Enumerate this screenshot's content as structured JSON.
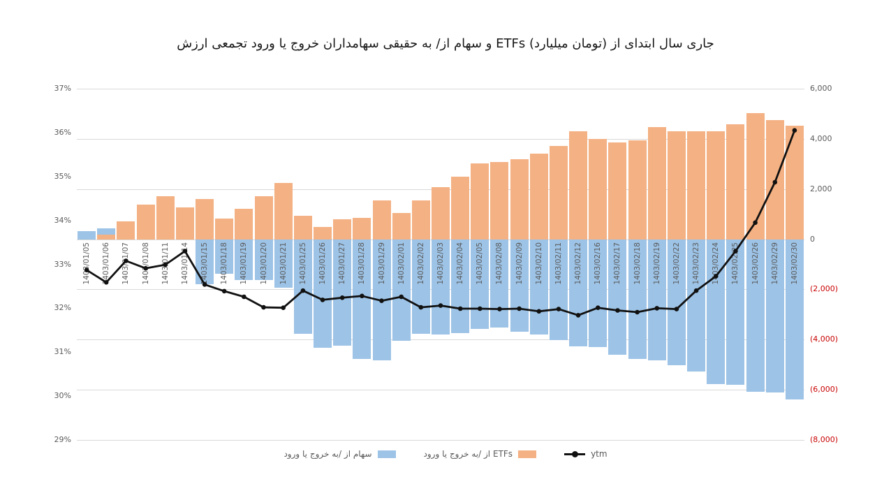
{
  "title": "ارزش تجمعی ورود یا خروج سهامداران حقیقی به /از سهام و ETFs (میلیارد تومان) از ابتدای سال جاری",
  "legend": {
    "stocks": "ورود یا خروج به/ از سهام",
    "etfs": "ورود یا خروج به/ از ETFs",
    "ytm": "ytm"
  },
  "colors": {
    "stocks_bar": "#9DC3E6",
    "etfs_bar": "#F4B183",
    "ytm_line": "#111111",
    "gridline": "#D9D9D9",
    "axis_text": "#595959",
    "negative_axis_text": "#C80000"
  },
  "chart_data": {
    "type": "combo: stacked bar (right axis) + line (left axis)",
    "grid": "horizontal gridlines on, legend bottom-center",
    "categories": [
      "1403/01/05",
      "1403/01/06",
      "1403/01/07",
      "1403/01/08",
      "1403/01/11",
      "1403/01/14",
      "1403/01/15",
      "1403/01/18",
      "1403/01/19",
      "1403/01/20",
      "1403/01/21",
      "1403/01/25",
      "1403/01/26",
      "1403/01/27",
      "1403/01/28",
      "1403/01/29",
      "1403/02/01",
      "1403/02/02",
      "1403/02/03",
      "1403/02/04",
      "1403/02/05",
      "1403/02/08",
      "1403/02/09",
      "1403/02/10",
      "1403/02/11",
      "1403/02/12",
      "1403/02/16",
      "1403/02/17",
      "1403/02/18",
      "1403/02/19",
      "1403/02/22",
      "1403/02/23",
      "1403/02/24",
      "1403/02/25",
      "1403/02/26",
      "1403/02/29",
      "1403/02/30"
    ],
    "series": [
      {
        "name": "ورود یا خروج به/ از سهام",
        "type": "bar",
        "axis": "right",
        "values": [
          330,
          240,
          0,
          0,
          0,
          0,
          -1800,
          -1370,
          -1620,
          -1620,
          -1920,
          -3760,
          -4320,
          -4240,
          -4780,
          -4830,
          -4060,
          -3760,
          -3800,
          -3730,
          -3580,
          -3530,
          -3690,
          -3800,
          -4010,
          -4260,
          -4310,
          -4610,
          -4770,
          -4830,
          -5010,
          -5260,
          -5770,
          -5800,
          -6080,
          -6120,
          -6390
        ]
      },
      {
        "name": "ورود یا خروج به/ از ETFs",
        "type": "bar",
        "axis": "right",
        "values": [
          0,
          190,
          705,
          1370,
          1715,
          1255,
          1600,
          835,
          1215,
          1700,
          2235,
          935,
          500,
          805,
          840,
          1540,
          1055,
          1540,
          2085,
          2495,
          3015,
          3090,
          3180,
          3400,
          3720,
          4310,
          4000,
          3850,
          3950,
          4480,
          4290,
          4290,
          4290,
          4570,
          5020,
          4740,
          4535
        ]
      },
      {
        "name": "ytm",
        "type": "line",
        "axis": "left",
        "unit": "%",
        "values": [
          32.87,
          32.59,
          33.08,
          32.91,
          32.99,
          33.3,
          32.54,
          32.39,
          32.26,
          32.02,
          32.01,
          32.4,
          32.19,
          32.24,
          32.28,
          32.17,
          32.26,
          32.02,
          32.06,
          31.99,
          31.99,
          31.98,
          31.99,
          31.93,
          31.98,
          31.84,
          32.01,
          31.95,
          31.91,
          32.0,
          31.98,
          32.4,
          32.73,
          33.3,
          33.95,
          34.87,
          36.05
        ]
      }
    ],
    "left_axis": {
      "min": 29,
      "max": 37,
      "ticks": [
        "37%",
        "36%",
        "35%",
        "34%",
        "33%",
        "32%",
        "31%",
        "30%",
        "29%"
      ]
    },
    "right_axis": {
      "min": -8000,
      "max": 6000,
      "ticks": [
        "6,000",
        "4,000",
        "2,000",
        "0",
        "(2,000)",
        "(4,000)",
        "(6,000)",
        "(8,000)"
      ]
    }
  }
}
